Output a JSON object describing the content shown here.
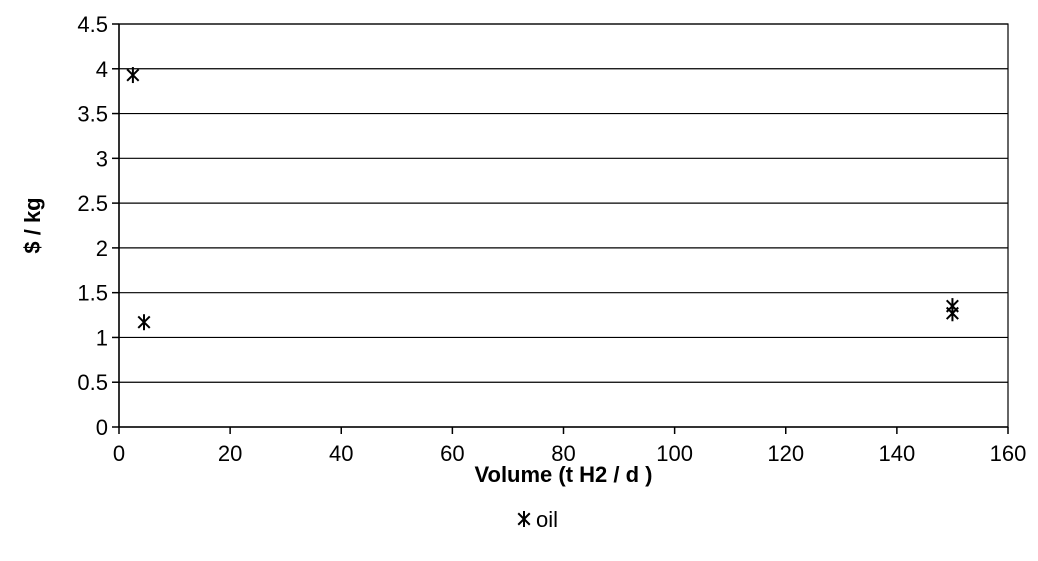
{
  "chart_data": {
    "type": "scatter",
    "xlabel": "Volume (t H2 / d )",
    "ylabel": "$ / kg",
    "xlim": [
      0,
      160
    ],
    "ylim": [
      0,
      4.5
    ],
    "x_ticks": [
      0,
      20,
      40,
      60,
      80,
      100,
      120,
      140,
      160
    ],
    "y_ticks": [
      0,
      0.5,
      1,
      1.5,
      2,
      2.5,
      3,
      3.5,
      4,
      4.5
    ],
    "y_tick_labels": [
      "0",
      "0.5",
      "1",
      "1.5",
      "2",
      "2.5",
      "3",
      "3.5",
      "4",
      "4.5"
    ],
    "grid": true,
    "legend_position": "bottom",
    "series": [
      {
        "name": "oil",
        "marker": "asterisk",
        "color": "#000000",
        "points": [
          {
            "x": 2.5,
            "y": 3.93
          },
          {
            "x": 4.5,
            "y": 1.17
          },
          {
            "x": 150,
            "y": 1.35
          },
          {
            "x": 150,
            "y": 1.27
          }
        ]
      }
    ]
  }
}
